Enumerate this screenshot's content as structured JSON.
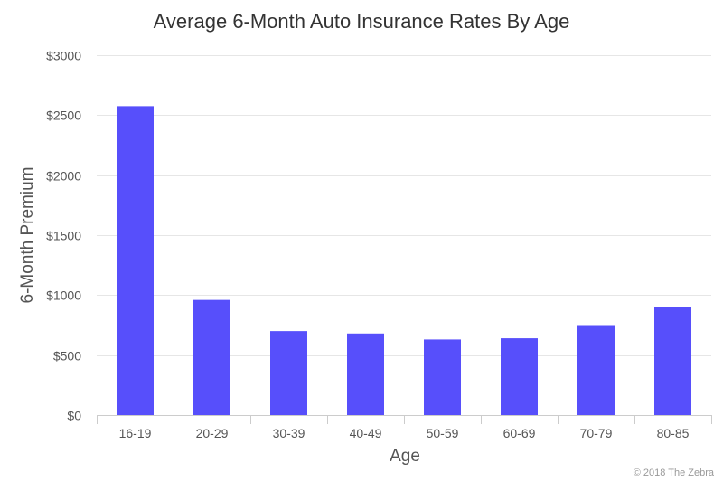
{
  "chart_data": {
    "type": "bar",
    "title": "Average 6-Month Auto Insurance Rates By Age",
    "xlabel": "Age",
    "ylabel": "6-Month Premium",
    "categories": [
      "16-19",
      "20-29",
      "30-39",
      "40-49",
      "50-59",
      "60-69",
      "70-79",
      "80-85"
    ],
    "values": [
      2575,
      960,
      700,
      680,
      630,
      640,
      750,
      900
    ],
    "ylim": [
      0,
      3000
    ],
    "yticks": [
      0,
      500,
      1000,
      1500,
      2000,
      2500,
      3000
    ],
    "ytick_labels": [
      "$0",
      "$500",
      "$1000",
      "$1500",
      "$2000",
      "$2500",
      "$3000"
    ],
    "bar_color": "#574ffb",
    "grid": true,
    "legend": false
  },
  "credit": "© 2018 The Zebra"
}
